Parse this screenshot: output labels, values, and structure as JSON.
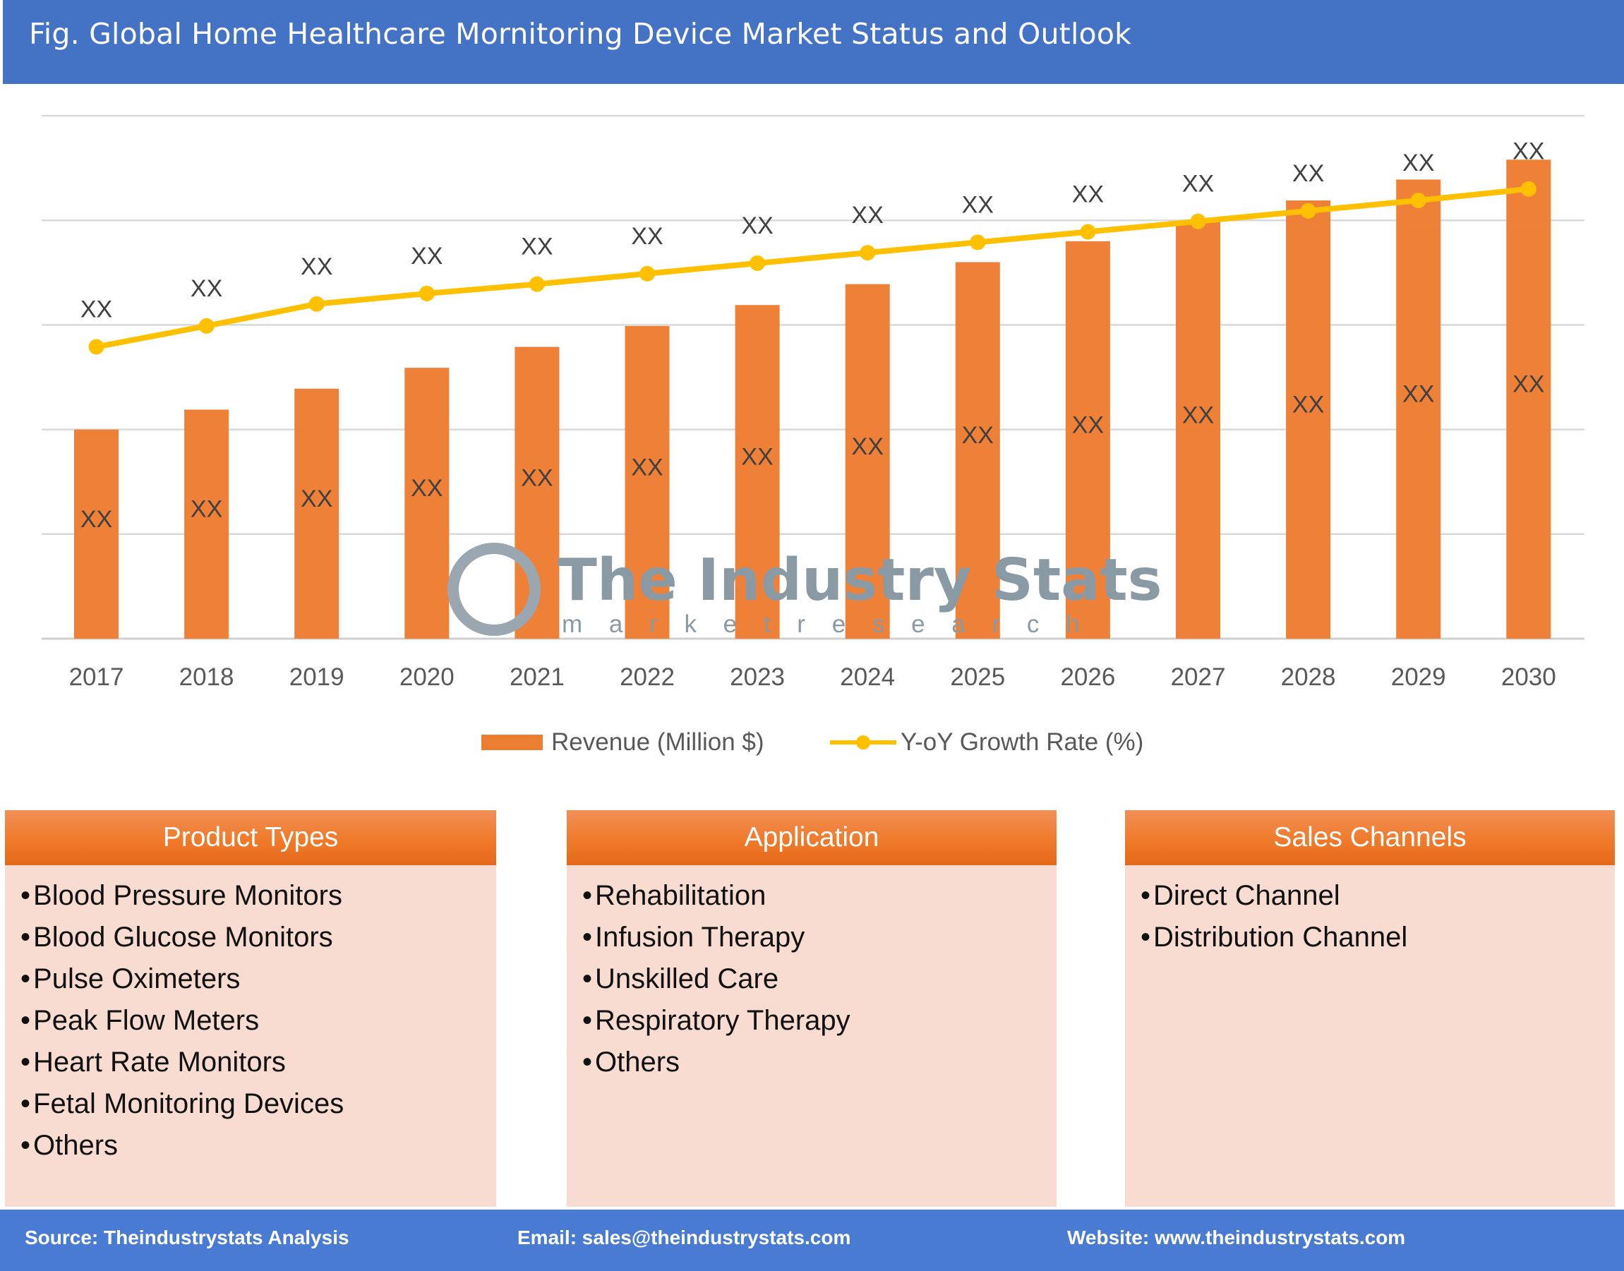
{
  "header": {
    "title": "Fig. Global Home Healthcare Mornitoring Device Market Status and Outlook"
  },
  "watermark": {
    "name": "The Industry Stats",
    "tagline": "m a r k e t   r e s e a r c h"
  },
  "chart_data": {
    "type": "bar+line",
    "categories": [
      "2017",
      "2018",
      "2019",
      "2020",
      "2021",
      "2022",
      "2023",
      "2024",
      "2025",
      "2026",
      "2027",
      "2028",
      "2029",
      "2030"
    ],
    "series": [
      {
        "name": "Revenue (Million $)",
        "type": "bar",
        "color": "#ED7D31",
        "values": [
          2.0,
          2.19,
          2.39,
          2.59,
          2.79,
          2.99,
          3.19,
          3.39,
          3.6,
          3.8,
          3.99,
          4.19,
          4.39,
          4.58
        ],
        "labels": [
          "XX",
          "XX",
          "XX",
          "XX",
          "XX",
          "XX",
          "XX",
          "XX",
          "XX",
          "XX",
          "XX",
          "XX",
          "XX",
          "XX"
        ]
      },
      {
        "name": "Y-oY Growth Rate (%)",
        "type": "line",
        "color": "#FFC000",
        "values": [
          2.79,
          2.99,
          3.2,
          3.3,
          3.39,
          3.49,
          3.59,
          3.69,
          3.79,
          3.89,
          3.99,
          4.09,
          4.19,
          4.3
        ],
        "labels": [
          "XX",
          "XX",
          "XX",
          "XX",
          "XX",
          "XX",
          "XX",
          "XX",
          "XX",
          "XX",
          "XX",
          "XX",
          "XX",
          "XX"
        ]
      }
    ],
    "ylim": [
      0,
      5
    ],
    "y_tick_labels_shown": false,
    "grid": true,
    "legend": "bottom"
  },
  "boxes": [
    {
      "title": "Product Types",
      "items": [
        "Blood Pressure Monitors",
        "Blood Glucose Monitors",
        "Pulse Oximeters",
        "Peak Flow Meters",
        "Heart Rate Monitors",
        "Fetal Monitoring Devices",
        "Others"
      ]
    },
    {
      "title": "Application",
      "items": [
        "Rehabilitation",
        "Infusion Therapy",
        "Unskilled Care",
        "Respiratory Therapy",
        "Others"
      ]
    },
    {
      "title": "Sales Channels",
      "items": [
        "Direct Channel",
        "Distribution Channel"
      ]
    }
  ],
  "bullet": "•",
  "footer": {
    "source": "Source: Theindustrystats Analysis",
    "email": "Email: sales@theindustrystats.com",
    "website": "Website: www.theindustrystats.com"
  }
}
